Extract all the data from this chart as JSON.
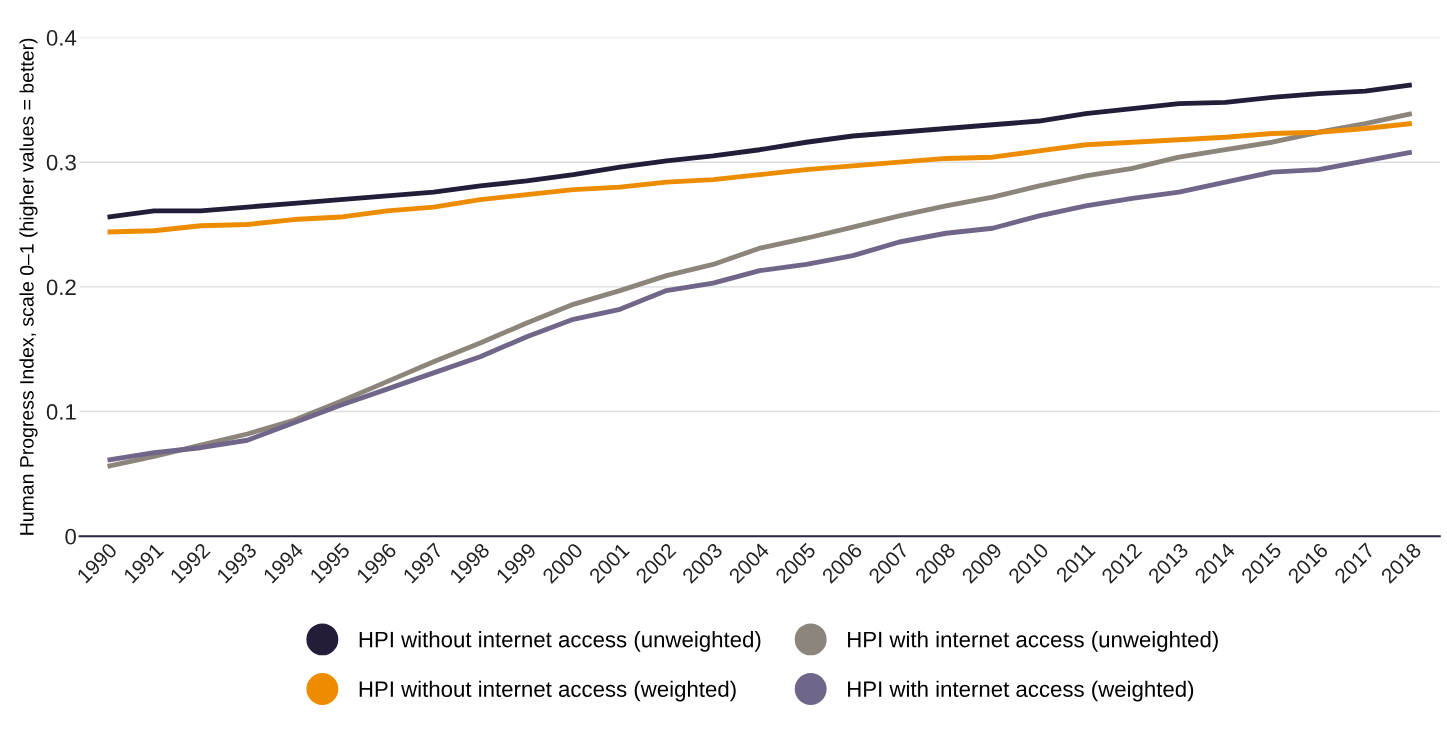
{
  "chart_data": {
    "type": "line",
    "ylabel": "Human Progress Index, scale 0–1 (higher values = better)",
    "categories": [
      "1990",
      "1991",
      "1992",
      "1993",
      "1994",
      "1995",
      "1996",
      "1997",
      "1998",
      "1999",
      "2000",
      "2001",
      "2002",
      "2003",
      "2004",
      "2005",
      "2006",
      "2007",
      "2008",
      "2009",
      "2010",
      "2011",
      "2012",
      "2013",
      "2014",
      "2015",
      "2016",
      "2017",
      "2018"
    ],
    "series": [
      {
        "name": "HPI without internet access (unweighted)",
        "color": "#231d3a",
        "values": [
          0.256,
          0.261,
          0.261,
          0.264,
          0.267,
          0.27,
          0.273,
          0.276,
          0.281,
          0.285,
          0.29,
          0.296,
          0.301,
          0.305,
          0.31,
          0.316,
          0.321,
          0.324,
          0.327,
          0.33,
          0.333,
          0.339,
          0.343,
          0.347,
          0.348,
          0.352,
          0.355,
          0.357,
          0.362
        ]
      },
      {
        "name": "HPI with internet access (unweighted)",
        "color": "#8c857b",
        "values": [
          0.056,
          0.064,
          0.073,
          0.082,
          0.093,
          0.108,
          0.124,
          0.14,
          0.155,
          0.171,
          0.186,
          0.197,
          0.209,
          0.218,
          0.231,
          0.239,
          0.248,
          0.257,
          0.265,
          0.272,
          0.281,
          0.289,
          0.295,
          0.304,
          0.31,
          0.316,
          0.324,
          0.331,
          0.339
        ]
      },
      {
        "name": "HPI without internet access (weighted)",
        "color": "#ee8c00",
        "values": [
          0.244,
          0.245,
          0.249,
          0.25,
          0.254,
          0.256,
          0.261,
          0.264,
          0.27,
          0.274,
          0.278,
          0.28,
          0.284,
          0.286,
          0.29,
          0.294,
          0.297,
          0.3,
          0.303,
          0.304,
          0.309,
          0.314,
          0.316,
          0.318,
          0.32,
          0.323,
          0.324,
          0.327,
          0.331
        ]
      },
      {
        "name": "HPI with internet access (weighted)",
        "color": "#6f6689",
        "values": [
          0.061,
          0.067,
          0.071,
          0.077,
          0.091,
          0.105,
          0.118,
          0.131,
          0.144,
          0.16,
          0.174,
          0.182,
          0.197,
          0.203,
          0.213,
          0.218,
          0.225,
          0.236,
          0.243,
          0.247,
          0.257,
          0.265,
          0.271,
          0.276,
          0.284,
          0.292,
          0.294,
          0.301,
          0.308
        ]
      }
    ],
    "ylim": [
      0,
      0.4
    ],
    "yticks": [
      {
        "value": 0,
        "label": "0"
      },
      0.1,
      0.2,
      0.3,
      0.4
    ],
    "grid": "y",
    "legend": "bottom",
    "marker": "none",
    "line_style": "solid"
  }
}
